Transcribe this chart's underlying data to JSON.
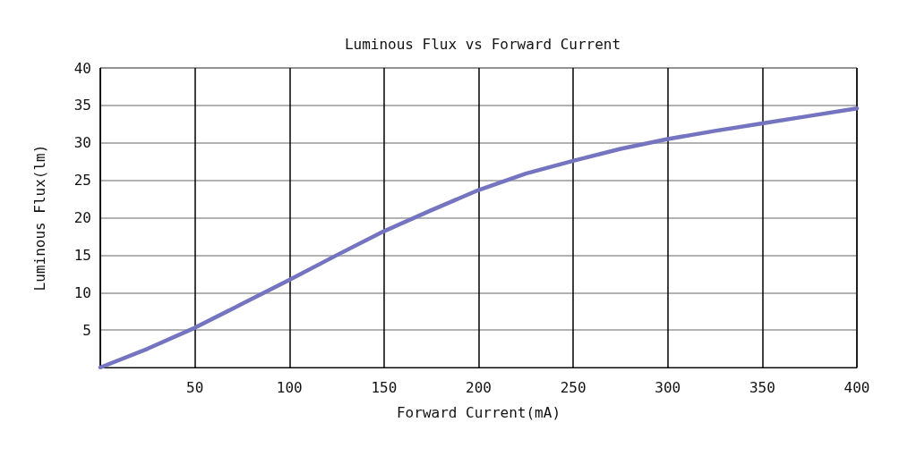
{
  "chart_data": {
    "type": "line",
    "title": "Luminous Flux vs Forward Current",
    "xlabel": "Forward Current(mA)",
    "ylabel": "Luminous Flux(lm)",
    "x": [
      0,
      25,
      50,
      75,
      100,
      125,
      150,
      175,
      200,
      225,
      250,
      275,
      300,
      325,
      350,
      375,
      400
    ],
    "series": [
      {
        "color": "#7474c0",
        "values": [
          0,
          2.5,
          5.3,
          8.5,
          11.7,
          15,
          18.2,
          21,
          23.7,
          25.9,
          27.6,
          29.2,
          30.5,
          31.6,
          32.6,
          33.6,
          34.6
        ]
      }
    ],
    "xlim": [
      0,
      400
    ],
    "xticks": [
      {
        "value": 0,
        "label": null
      },
      50,
      100,
      150,
      200,
      250,
      300,
      350,
      400
    ],
    "ylim": [
      0,
      40
    ],
    "yticks": [
      {
        "value": 0,
        "label": null
      },
      5,
      10,
      15,
      20,
      25,
      30,
      35,
      40
    ],
    "grid": true,
    "marker": "none",
    "line_style": "solid"
  }
}
